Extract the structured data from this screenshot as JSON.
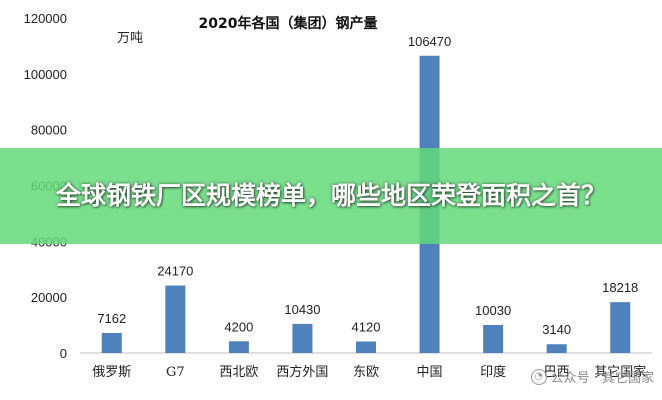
{
  "chart_data": {
    "type": "bar",
    "title": "2020年各国（集团）钢产量",
    "unit_label": "万吨",
    "categories": [
      "俄罗斯",
      "G7",
      "西北欧",
      "西方外国",
      "东欧",
      "中国",
      "印度",
      "巴西",
      "其它国家"
    ],
    "values": [
      7162,
      24170,
      4200,
      10430,
      4120,
      106470,
      10030,
      3140,
      18218
    ],
    "data_labels": [
      "7162",
      "24170",
      "4200",
      "10430",
      "4120",
      "106470",
      "10030",
      "3140",
      "18218"
    ],
    "y_ticks": [
      "0",
      "20000",
      "40000",
      "60000",
      "80000",
      "100000",
      "120000"
    ],
    "ylim": [
      0,
      120000
    ],
    "grid": false,
    "bar_color": "#4f81bd"
  },
  "banner": {
    "text": "全球钢铁厂区规模榜单，哪些地区荣登面积之首？"
  },
  "watermark": {
    "text": "公众号 · 其它国家",
    "icon": "chat-bubble-icon"
  }
}
